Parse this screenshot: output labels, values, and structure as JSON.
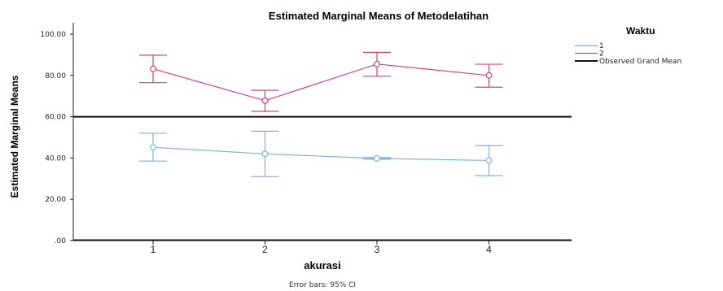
{
  "chart_data": {
    "type": "line",
    "title": "Estimated Marginal Means of Metodelatihan",
    "xlabel": "akurasi",
    "ylabel": "Estimated Marginal Means",
    "categories": [
      "1",
      "2",
      "3",
      "4"
    ],
    "ylim": [
      0,
      100
    ],
    "yticks": [
      ".00",
      "20.00",
      "40.00",
      "60.00",
      "80.00",
      "100.00"
    ],
    "grid": false,
    "legend_title": "Waktu",
    "legend_position": "top-right",
    "series": [
      {
        "name": "1",
        "color": "#7fb2e5",
        "values": [
          45.2,
          42.0,
          39.8,
          38.8
        ],
        "ci_low": [
          38.5,
          31.0,
          39.4,
          31.5
        ],
        "ci_high": [
          52.0,
          53.0,
          40.2,
          46.0
        ]
      },
      {
        "name": "2",
        "color": "#d9436f",
        "values": [
          83.2,
          67.8,
          85.5,
          80.0
        ],
        "ci_low": [
          76.5,
          62.6,
          79.6,
          74.3
        ],
        "ci_high": [
          89.8,
          72.8,
          91.2,
          85.4
        ]
      }
    ],
    "reference_line": {
      "name": "Observed Grand Mean",
      "value": 60.0,
      "color": "#111111"
    },
    "note": "Error bars: 95% CI"
  }
}
